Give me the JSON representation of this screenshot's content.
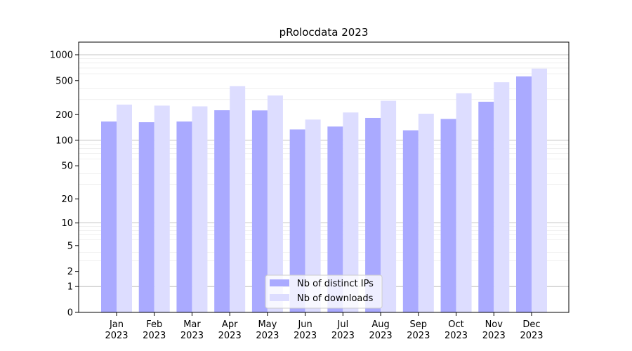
{
  "chart_data": {
    "type": "bar",
    "title": "pRolocdata 2023",
    "xlabel": "",
    "ylabel": "",
    "yscale": "log1p",
    "ylim": [
      0,
      1000
    ],
    "y_ticks": [
      0,
      1,
      2,
      5,
      10,
      20,
      50,
      100,
      200,
      500,
      1000
    ],
    "grid": true,
    "legend_position": "bottom-center",
    "categories": [
      "Jan\n2023",
      "Feb\n2023",
      "Mar\n2023",
      "Apr\n2023",
      "May\n2023",
      "Jun\n2023",
      "Jul\n2023",
      "Aug\n2023",
      "Sep\n2023",
      "Oct\n2023",
      "Nov\n2023",
      "Dec\n2023"
    ],
    "series": [
      {
        "name": "Nb of distinct IPs",
        "color": "#aaaaff",
        "values": [
          166,
          163,
          166,
          225,
          224,
          134,
          145,
          183,
          131,
          178,
          283,
          560
        ]
      },
      {
        "name": "Nb of downloads",
        "color": "#ddddff",
        "values": [
          262,
          255,
          250,
          430,
          335,
          175,
          212,
          290,
          205,
          355,
          478,
          690
        ]
      }
    ]
  }
}
